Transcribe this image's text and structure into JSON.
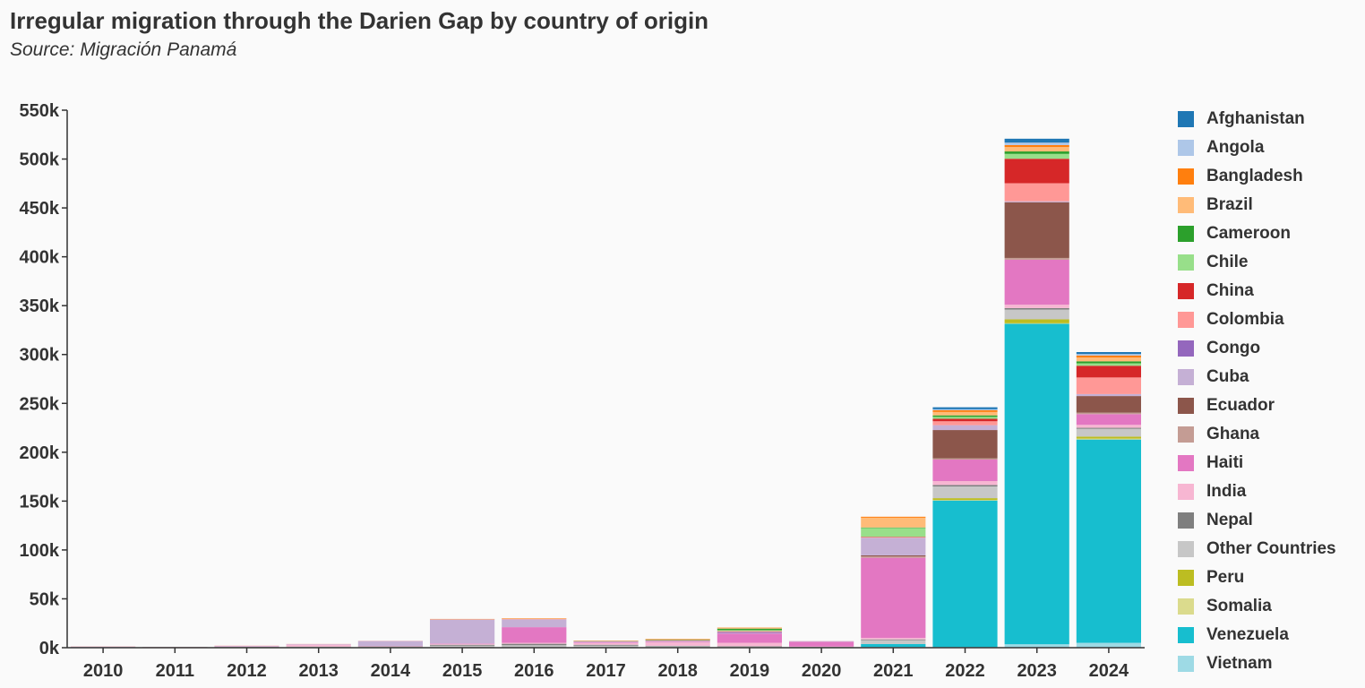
{
  "title": "Irregular migration through the Darien Gap by country of origin",
  "subtitle": "Source: Migración Panamá",
  "chart_data": {
    "type": "bar",
    "stacked": true,
    "title": "Irregular migration through the Darien Gap by country of origin",
    "subtitle": "Source: Migración Panamá",
    "xlabel": "",
    "ylabel": "",
    "ylim": [
      0,
      550000
    ],
    "y_ticks": [
      "0k",
      "50k",
      "100k",
      "150k",
      "200k",
      "250k",
      "300k",
      "350k",
      "400k",
      "450k",
      "500k",
      "550k"
    ],
    "grid": false,
    "legend_position": "right",
    "categories": [
      "2010",
      "2011",
      "2012",
      "2013",
      "2014",
      "2015",
      "2016",
      "2017",
      "2018",
      "2019",
      "2020",
      "2021",
      "2022",
      "2023",
      "2024"
    ],
    "series": [
      {
        "name": "Vietnam",
        "color": "#9edae5",
        "values": [
          0,
          0,
          0,
          0,
          0,
          0,
          0,
          0,
          0,
          0,
          0,
          700,
          600,
          3500,
          5000
        ]
      },
      {
        "name": "Venezuela",
        "color": "#17becf",
        "values": [
          0,
          0,
          0,
          0,
          0,
          0,
          0,
          0,
          0,
          0,
          0,
          3000,
          150000,
          328000,
          208000
        ]
      },
      {
        "name": "Somalia",
        "color": "#dbdb8d",
        "values": [
          0,
          0,
          0,
          0,
          0,
          0,
          0,
          0,
          0,
          0,
          0,
          0,
          400,
          500,
          1000
        ]
      },
      {
        "name": "Peru",
        "color": "#bcbd22",
        "values": [
          0,
          0,
          0,
          0,
          0,
          0,
          0,
          0,
          0,
          0,
          0,
          0,
          2000,
          4000,
          2000
        ]
      },
      {
        "name": "Other Countries",
        "color": "#c7c7c7",
        "values": [
          300,
          200,
          700,
          900,
          1000,
          2000,
          2500,
          2000,
          1500,
          1000,
          500,
          4000,
          12000,
          10000,
          8000
        ]
      },
      {
        "name": "Nepal",
        "color": "#7f7f7f",
        "values": [
          100,
          100,
          200,
          200,
          300,
          1000,
          1500,
          1000,
          500,
          500,
          200,
          800,
          1500,
          1500,
          1000
        ]
      },
      {
        "name": "India",
        "color": "#f7b6d2",
        "values": [
          200,
          100,
          500,
          2000,
          300,
          800,
          1000,
          2000,
          3500,
          3500,
          500,
          1500,
          4000,
          3500,
          3000
        ]
      },
      {
        "name": "Haiti",
        "color": "#e377c2",
        "values": [
          0,
          0,
          0,
          0,
          200,
          500,
          16000,
          500,
          500,
          9500,
          5000,
          82000,
          22000,
          46000,
          11000
        ]
      },
      {
        "name": "Ghana",
        "color": "#c49c94",
        "values": [
          0,
          0,
          0,
          0,
          0,
          0,
          0,
          0,
          0,
          0,
          0,
          1500,
          1200,
          1800,
          1500
        ]
      },
      {
        "name": "Ecuador",
        "color": "#8c564b",
        "values": [
          0,
          0,
          0,
          0,
          0,
          0,
          0,
          0,
          0,
          0,
          0,
          1000,
          29000,
          57000,
          17000
        ]
      },
      {
        "name": "Cuba",
        "color": "#c5b0d5",
        "values": [
          500,
          300,
          500,
          500,
          5000,
          24500,
          8000,
          1000,
          1000,
          500,
          500,
          18000,
          5000,
          1000,
          2000
        ]
      },
      {
        "name": "Congo",
        "color": "#9467bd",
        "values": [
          0,
          0,
          0,
          0,
          0,
          0,
          0,
          0,
          0,
          1000,
          0,
          0,
          0,
          0,
          0
        ]
      },
      {
        "name": "Colombia",
        "color": "#ff9896",
        "values": [
          200,
          100,
          200,
          200,
          200,
          300,
          500,
          300,
          800,
          1000,
          100,
          500,
          4000,
          18500,
          17000
        ]
      },
      {
        "name": "China",
        "color": "#d62728",
        "values": [
          0,
          0,
          0,
          0,
          0,
          0,
          0,
          0,
          0,
          0,
          0,
          500,
          2500,
          25000,
          12000
        ]
      },
      {
        "name": "Chile",
        "color": "#98df8a",
        "values": [
          0,
          0,
          0,
          0,
          0,
          0,
          0,
          0,
          0,
          1000,
          0,
          9000,
          2000,
          5000,
          2500
        ]
      },
      {
        "name": "Cameroon",
        "color": "#2ca02c",
        "values": [
          0,
          0,
          0,
          0,
          0,
          0,
          0,
          200,
          500,
          1500,
          0,
          500,
          1500,
          2500,
          2000
        ]
      },
      {
        "name": "Brazil",
        "color": "#ffbb78",
        "values": [
          0,
          0,
          0,
          0,
          0,
          0,
          0,
          0,
          0,
          500,
          0,
          10000,
          3500,
          4500,
          4000
        ]
      },
      {
        "name": "Bangladesh",
        "color": "#ff7f0e",
        "values": [
          0,
          0,
          0,
          0,
          0,
          300,
          500,
          300,
          500,
          500,
          0,
          1000,
          1800,
          2000,
          2000
        ]
      },
      {
        "name": "Angola",
        "color": "#aec7e8",
        "values": [
          0,
          0,
          0,
          0,
          0,
          0,
          0,
          0,
          0,
          0,
          0,
          0,
          1000,
          2500,
          1500
        ]
      },
      {
        "name": "Afghanistan",
        "color": "#1f77b4",
        "values": [
          0,
          0,
          0,
          0,
          0,
          0,
          0,
          0,
          0,
          0,
          0,
          0,
          2000,
          4000,
          2000
        ]
      }
    ]
  },
  "legend": [
    {
      "label": "Afghanistan",
      "color": "#1f77b4"
    },
    {
      "label": "Angola",
      "color": "#aec7e8"
    },
    {
      "label": "Bangladesh",
      "color": "#ff7f0e"
    },
    {
      "label": "Brazil",
      "color": "#ffbb78"
    },
    {
      "label": "Cameroon",
      "color": "#2ca02c"
    },
    {
      "label": "Chile",
      "color": "#98df8a"
    },
    {
      "label": "China",
      "color": "#d62728"
    },
    {
      "label": "Colombia",
      "color": "#ff9896"
    },
    {
      "label": "Congo",
      "color": "#9467bd"
    },
    {
      "label": "Cuba",
      "color": "#c5b0d5"
    },
    {
      "label": "Ecuador",
      "color": "#8c564b"
    },
    {
      "label": "Ghana",
      "color": "#c49c94"
    },
    {
      "label": "Haiti",
      "color": "#e377c2"
    },
    {
      "label": "India",
      "color": "#f7b6d2"
    },
    {
      "label": "Nepal",
      "color": "#7f7f7f"
    },
    {
      "label": "Other Countries",
      "color": "#c7c7c7"
    },
    {
      "label": "Peru",
      "color": "#bcbd22"
    },
    {
      "label": "Somalia",
      "color": "#dbdb8d"
    },
    {
      "label": "Venezuela",
      "color": "#17becf"
    },
    {
      "label": "Vietnam",
      "color": "#9edae5"
    }
  ]
}
